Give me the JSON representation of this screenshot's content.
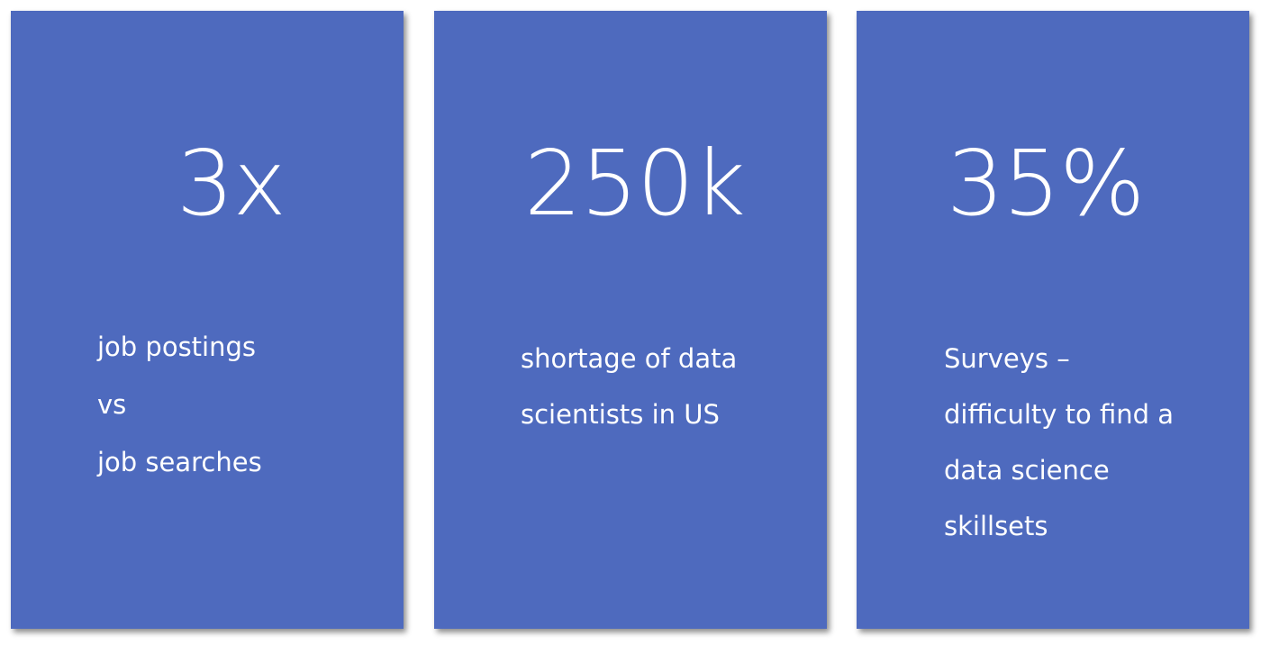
{
  "background_color": "#ffffff",
  "card_color": "#4e6abe",
  "cards": [
    {
      "stat": "3x",
      "lines": [
        "job postings",
        "vs",
        "job searches"
      ]
    },
    {
      "stat": "250k",
      "lines": [
        "shortage of data",
        "scientists in US"
      ]
    },
    {
      "stat": "35%",
      "lines": [
        "Surveys –",
        "difficulty to find a",
        "data science",
        "skillsets"
      ]
    }
  ]
}
